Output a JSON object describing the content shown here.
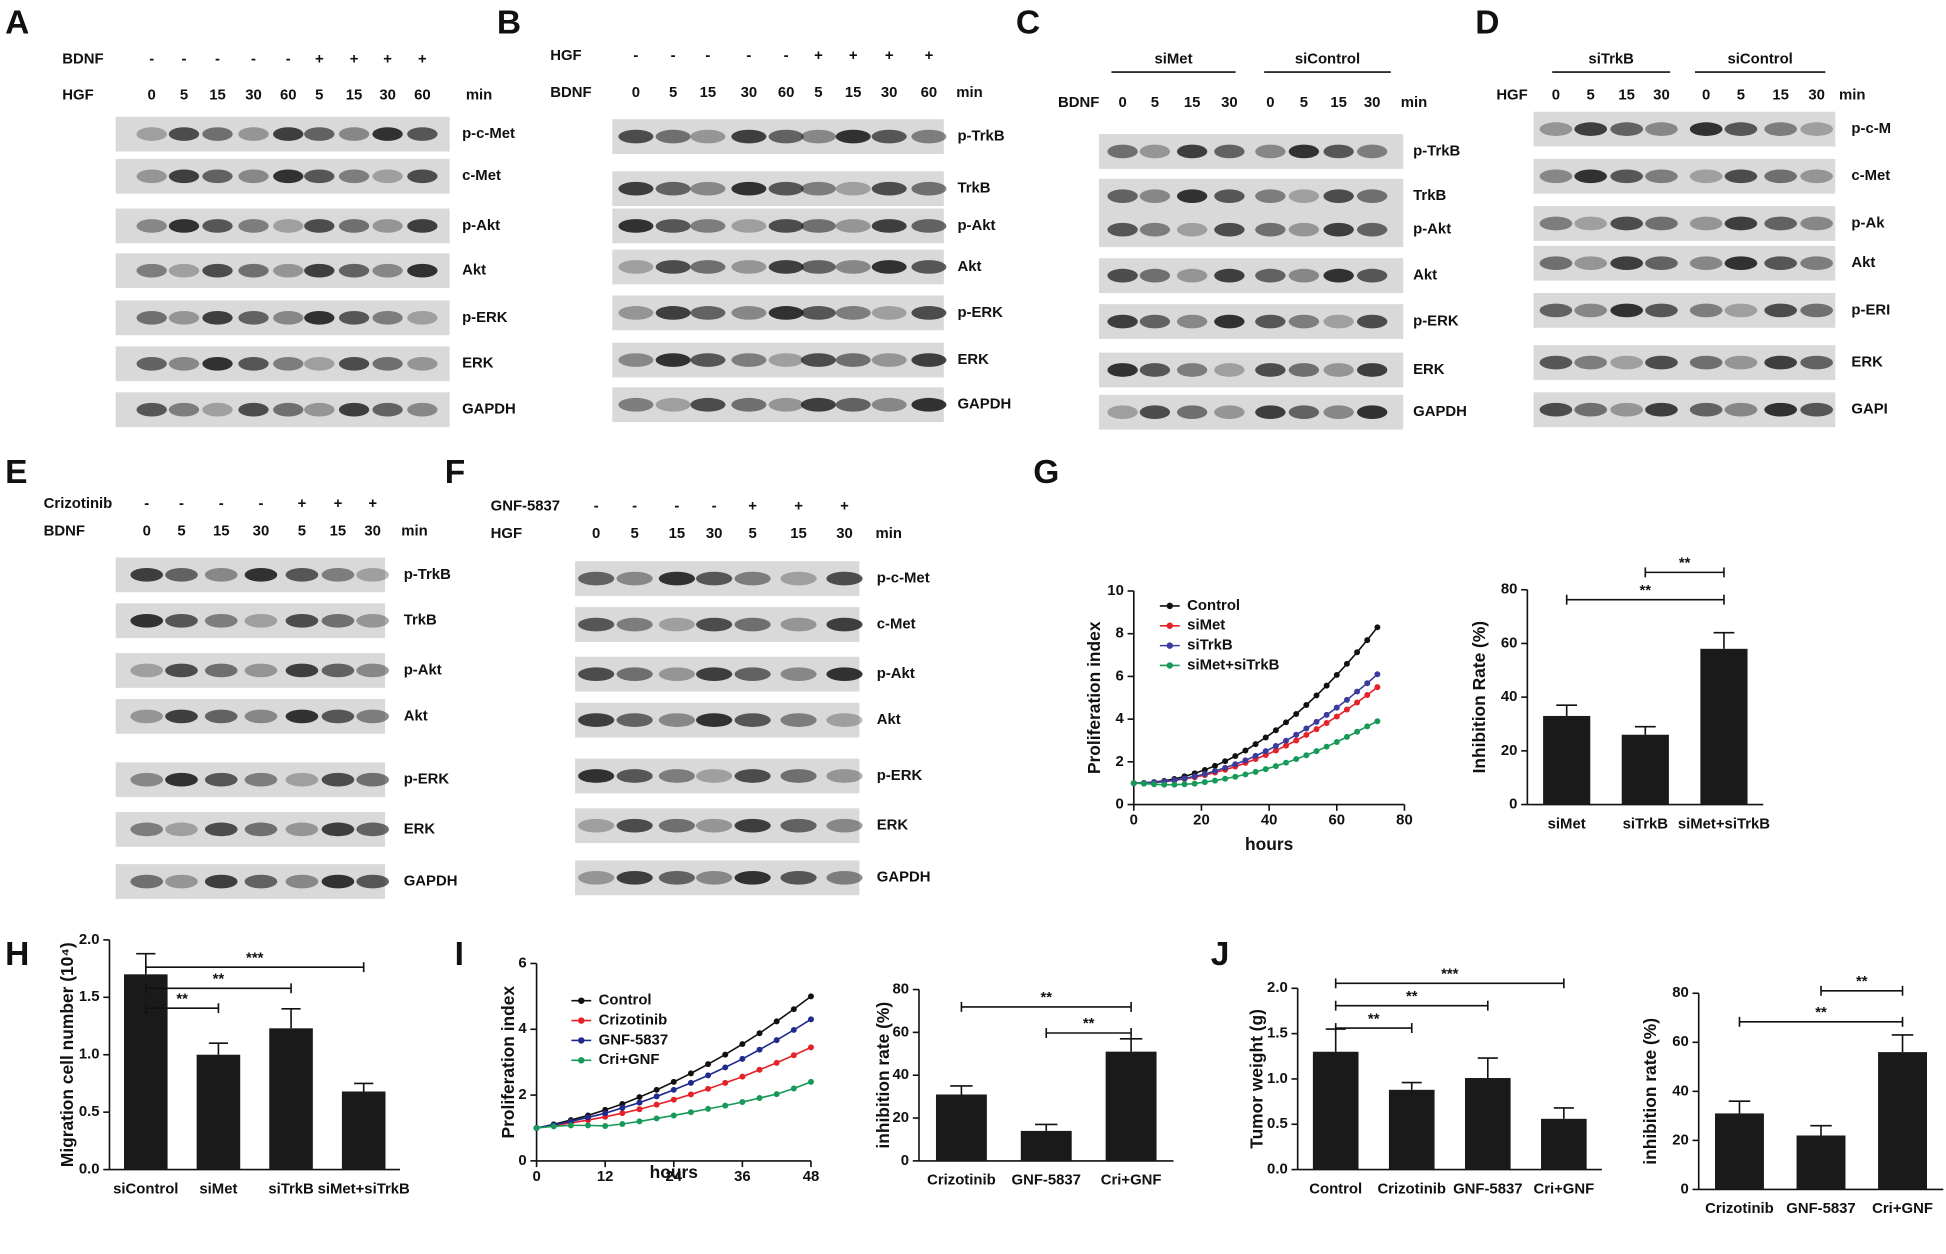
{
  "blots": [
    {
      "panel": "A",
      "conditions": [
        {
          "label": "BDNF",
          "lanes": [
            "-",
            "-",
            "-",
            "-",
            "-",
            "+",
            "+",
            "+",
            "+"
          ]
        },
        {
          "label": "HGF",
          "lanes": [
            0,
            5,
            15,
            30,
            60,
            5,
            15,
            30,
            60
          ]
        }
      ],
      "unit": "min",
      "bands": [
        "p-c-Met",
        "c-Met",
        "p-Akt",
        "Akt",
        "p-ERK",
        "ERK",
        "GAPDH"
      ]
    },
    {
      "panel": "B",
      "conditions": [
        {
          "label": "HGF",
          "lanes": [
            "-",
            "-",
            "-",
            "-",
            "-",
            "+",
            "+",
            "+",
            "+"
          ]
        },
        {
          "label": "BDNF",
          "lanes": [
            0,
            5,
            15,
            30,
            60,
            5,
            15,
            30,
            60
          ]
        }
      ],
      "unit": "min",
      "bands": [
        "p-TrkB",
        "TrkB",
        "p-Akt",
        "Akt",
        "p-ERK",
        "ERK",
        "GAPDH"
      ]
    },
    {
      "panel": "C",
      "groups": [
        "siMet",
        "siControl"
      ],
      "conditions": [
        {
          "label": "BDNF",
          "lanes": [
            0,
            5,
            15,
            30,
            0,
            5,
            15,
            30
          ]
        }
      ],
      "unit": "min",
      "bands": [
        "p-TrkB",
        "TrkB",
        "p-Akt",
        "Akt",
        "p-ERK",
        "ERK",
        "GAPDH"
      ]
    },
    {
      "panel": "D",
      "groups": [
        "siTrkB",
        "siControl"
      ],
      "conditions": [
        {
          "label": "HGF",
          "lanes": [
            0,
            5,
            15,
            30,
            0,
            5,
            15,
            30
          ]
        }
      ],
      "unit": "min",
      "bands": [
        "p-c-M",
        "c-Met",
        "p-Ak",
        "Akt",
        "p-ERI",
        "ERK",
        "GAPI"
      ]
    },
    {
      "panel": "E",
      "conditions": [
        {
          "label": "Crizotinib",
          "lanes": [
            "-",
            "-",
            "-",
            "-",
            "+",
            "+",
            "+"
          ]
        },
        {
          "label": "BDNF",
          "lanes": [
            0,
            5,
            15,
            30,
            5,
            15,
            30
          ]
        }
      ],
      "unit": "min",
      "bands": [
        "p-TrkB",
        "TrkB",
        "p-Akt",
        "Akt",
        "p-ERK",
        "ERK",
        "GAPDH"
      ]
    },
    {
      "panel": "F",
      "conditions": [
        {
          "label": "GNF-5837",
          "lanes": [
            "-",
            "-",
            "-",
            "-",
            "+",
            "+",
            "+"
          ]
        },
        {
          "label": "HGF",
          "lanes": [
            0,
            5,
            15,
            30,
            5,
            15,
            30
          ]
        }
      ],
      "unit": "min",
      "bands": [
        "p-c-Met",
        "c-Met",
        "p-Akt",
        "Akt",
        "p-ERK",
        "ERK",
        "GAPDH"
      ]
    }
  ],
  "chart_data": [
    {
      "type": "line",
      "panel": "G",
      "xlabel": "hours",
      "ylabel": "Proliferation index",
      "x": [
        0,
        3,
        6,
        9,
        12,
        15,
        18,
        21,
        24,
        27,
        30,
        33,
        36,
        39,
        42,
        45,
        48,
        51,
        54,
        57,
        60,
        63,
        66,
        69,
        72
      ],
      "xlim": [
        0,
        80
      ],
      "xticks": [
        0,
        20,
        40,
        60,
        80
      ],
      "ylim": [
        0,
        10
      ],
      "yticks": [
        0,
        2,
        4,
        6,
        8,
        10
      ],
      "series": [
        {
          "name": "Control",
          "color": "#111111",
          "values": [
            1,
            1.01,
            1.05,
            1.11,
            1.2,
            1.32,
            1.46,
            1.62,
            1.81,
            2.03,
            2.27,
            2.53,
            2.83,
            3.14,
            3.48,
            3.85,
            4.24,
            4.66,
            5.11,
            5.57,
            6.07,
            6.59,
            7.13,
            7.7,
            8.3
          ]
        },
        {
          "name": "siMet",
          "color": "#e52129",
          "values": [
            1,
            1.01,
            1.03,
            1.07,
            1.13,
            1.2,
            1.28,
            1.38,
            1.5,
            1.63,
            1.78,
            1.95,
            2.13,
            2.32,
            2.53,
            2.76,
            3,
            3.26,
            3.53,
            3.82,
            4.12,
            4.45,
            4.78,
            5.13,
            5.5
          ]
        },
        {
          "name": "siTrkB",
          "color": "#3b3b9c",
          "values": [
            1,
            1.01,
            1.04,
            1.08,
            1.14,
            1.22,
            1.32,
            1.43,
            1.57,
            1.72,
            1.89,
            2.07,
            2.28,
            2.5,
            2.74,
            2.99,
            3.27,
            3.56,
            3.87,
            4.2,
            4.54,
            4.9,
            5.29,
            5.68,
            6.1
          ]
        },
        {
          "name": "siMet+siTrkB",
          "color": "#17995a",
          "values": [
            1,
            0.98,
            0.95,
            0.93,
            0.93,
            0.95,
            0.98,
            1.05,
            1.12,
            1.21,
            1.3,
            1.41,
            1.53,
            1.66,
            1.8,
            1.96,
            2.13,
            2.31,
            2.5,
            2.71,
            2.93,
            3.17,
            3.41,
            3.66,
            3.9
          ]
        }
      ]
    },
    {
      "type": "bar",
      "ylabel": "Inhibition Rate (%)",
      "categories": [
        "siMet",
        "siTrkB",
        "siMet+siTrkB"
      ],
      "values": [
        33,
        26,
        58
      ],
      "error": [
        4,
        3,
        6
      ],
      "color": "#1a1a1a",
      "ylim": [
        0,
        80
      ],
      "yticks": [
        0,
        20,
        40,
        60,
        80
      ],
      "significance": [
        {
          "pair": [
            1,
            2
          ],
          "label": "**"
        },
        {
          "pair": [
            0,
            2
          ],
          "label": "**"
        }
      ]
    },
    {
      "type": "bar",
      "panel": "H",
      "ylabel": "Migration cell number (10⁴)",
      "categories": [
        "siControl",
        "siMet",
        "siTrkB",
        "siMet+siTrkB"
      ],
      "values": [
        1.7,
        1.0,
        1.23,
        0.68
      ],
      "error": [
        0.18,
        0.1,
        0.17,
        0.07
      ],
      "color": "#1a1a1a",
      "ylim": [
        0,
        2
      ],
      "yticks": [
        {
          "value": 0,
          "label": "0.0"
        },
        0.5,
        {
          "value": 1,
          "label": "1.0"
        },
        1.5,
        {
          "value": 2,
          "label": "2.0"
        }
      ],
      "significance": [
        {
          "pair": [
            0,
            3
          ],
          "label": "***"
        },
        {
          "pair": [
            0,
            2
          ],
          "label": "**"
        },
        {
          "pair": [
            0,
            1
          ],
          "label": "**"
        }
      ]
    },
    {
      "type": "line",
      "panel": "I",
      "xlabel": "hours",
      "ylabel": "Proliferation index",
      "x": [
        0,
        3,
        6,
        9,
        12,
        15,
        18,
        21,
        24,
        27,
        30,
        33,
        36,
        39,
        42,
        45,
        48
      ],
      "xlim": [
        0,
        48
      ],
      "xticks": [
        0,
        12,
        24,
        36,
        48
      ],
      "ylim": [
        0,
        6
      ],
      "yticks": [
        0,
        2,
        4,
        6
      ],
      "series": [
        {
          "name": "Control",
          "color": "#111111",
          "values": [
            1,
            1.11,
            1.24,
            1.38,
            1.55,
            1.73,
            1.94,
            2.16,
            2.4,
            2.66,
            2.94,
            3.23,
            3.55,
            3.88,
            4.24,
            4.61,
            5
          ]
        },
        {
          "name": "Crizotinib",
          "color": "#e52129",
          "values": [
            1,
            1.07,
            1.15,
            1.24,
            1.34,
            1.45,
            1.57,
            1.71,
            1.86,
            2.02,
            2.19,
            2.37,
            2.56,
            2.77,
            2.98,
            3.21,
            3.45
          ]
        },
        {
          "name": "GNF-5837",
          "color": "#1f2a8c",
          "values": [
            1,
            1.09,
            1.2,
            1.32,
            1.45,
            1.61,
            1.77,
            1.96,
            2.16,
            2.37,
            2.6,
            2.84,
            3.1,
            3.38,
            3.67,
            3.98,
            4.3
          ]
        },
        {
          "name": "Cri+GNF",
          "color": "#17995a",
          "values": [
            1,
            1.05,
            1.08,
            1.08,
            1.06,
            1.12,
            1.2,
            1.29,
            1.38,
            1.48,
            1.58,
            1.68,
            1.79,
            1.91,
            2.03,
            2.2,
            2.4
          ]
        }
      ]
    },
    {
      "type": "bar",
      "ylabel": "inhibition rate (%)",
      "categories": [
        "Crizotinib",
        "GNF-5837",
        "Cri+GNF"
      ],
      "values": [
        31,
        14,
        51
      ],
      "error": [
        4,
        3,
        6
      ],
      "color": "#1a1a1a",
      "ylim": [
        0,
        80
      ],
      "yticks": [
        0,
        20,
        40,
        60,
        80
      ],
      "significance": [
        {
          "pair": [
            0,
            2
          ],
          "label": "**"
        },
        {
          "pair": [
            1,
            2
          ],
          "label": "**"
        }
      ]
    },
    {
      "type": "bar",
      "panel": "J",
      "ylabel": "Tumor weight (g)",
      "categories": [
        "Control",
        "Crizotinib",
        "GNF-5837",
        "Cri+GNF"
      ],
      "values": [
        1.3,
        0.88,
        1.01,
        0.56
      ],
      "error": [
        0.25,
        0.08,
        0.22,
        0.12
      ],
      "color": "#1a1a1a",
      "ylim": [
        0,
        2
      ],
      "yticks": [
        {
          "value": 0,
          "label": "0.0"
        },
        0.5,
        {
          "value": 1,
          "label": "1.0"
        },
        1.5,
        {
          "value": 2,
          "label": "2.0"
        }
      ],
      "significance": [
        {
          "pair": [
            0,
            3
          ],
          "label": "***"
        },
        {
          "pair": [
            0,
            2
          ],
          "label": "**"
        },
        {
          "pair": [
            0,
            1
          ],
          "label": "**"
        }
      ]
    },
    {
      "type": "bar",
      "ylabel": "inhibition rate (%)",
      "categories": [
        "Crizotinib",
        "GNF-5837",
        "Cri+GNF"
      ],
      "values": [
        31,
        22,
        56
      ],
      "error": [
        5,
        4,
        7
      ],
      "color": "#1a1a1a",
      "ylim": [
        0,
        80
      ],
      "yticks": [
        0,
        20,
        40,
        60,
        80
      ],
      "significance": [
        {
          "pair": [
            1,
            2
          ],
          "label": "**"
        },
        {
          "pair": [
            0,
            2
          ],
          "label": "**"
        }
      ]
    }
  ]
}
